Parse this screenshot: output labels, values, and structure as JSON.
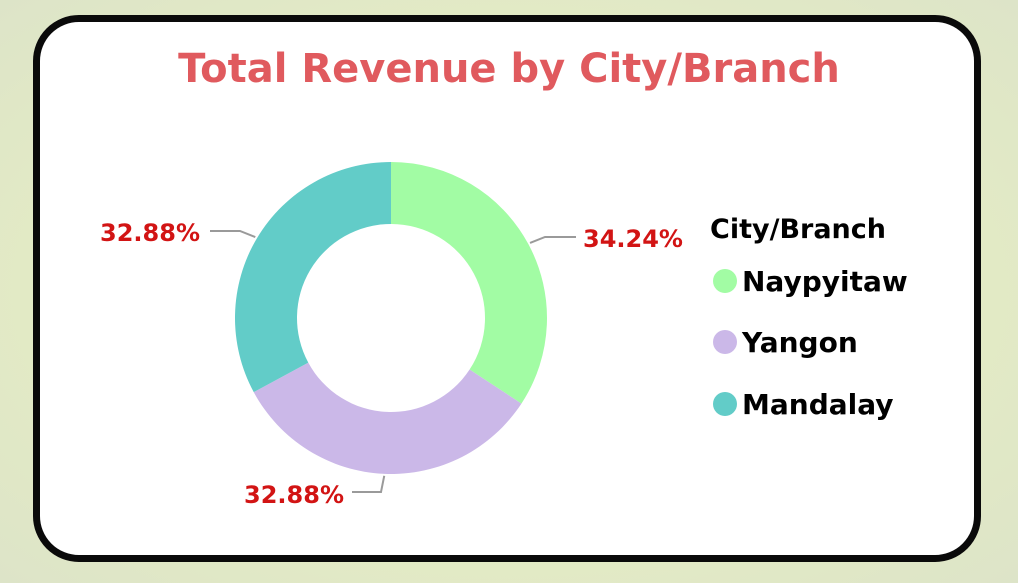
{
  "chart_data": {
    "type": "pie",
    "donut": true,
    "title": "Total Revenue by City/Branch",
    "legend_title": "City/Branch",
    "legend_position": "right",
    "series": [
      {
        "name": "Naypyitaw",
        "value": 34.24,
        "label": "34.24%",
        "color": "#a2fca4"
      },
      {
        "name": "Yangon",
        "value": 32.88,
        "label": "32.88%",
        "color": "#cbb8e8"
      },
      {
        "name": "Mandalay",
        "value": 32.88,
        "label": "32.88%",
        "color": "#62ccc8"
      }
    ]
  },
  "colors": {
    "title": "#e05a5e",
    "data_label": "#d21414",
    "leader_line": "#9a9a9a"
  }
}
